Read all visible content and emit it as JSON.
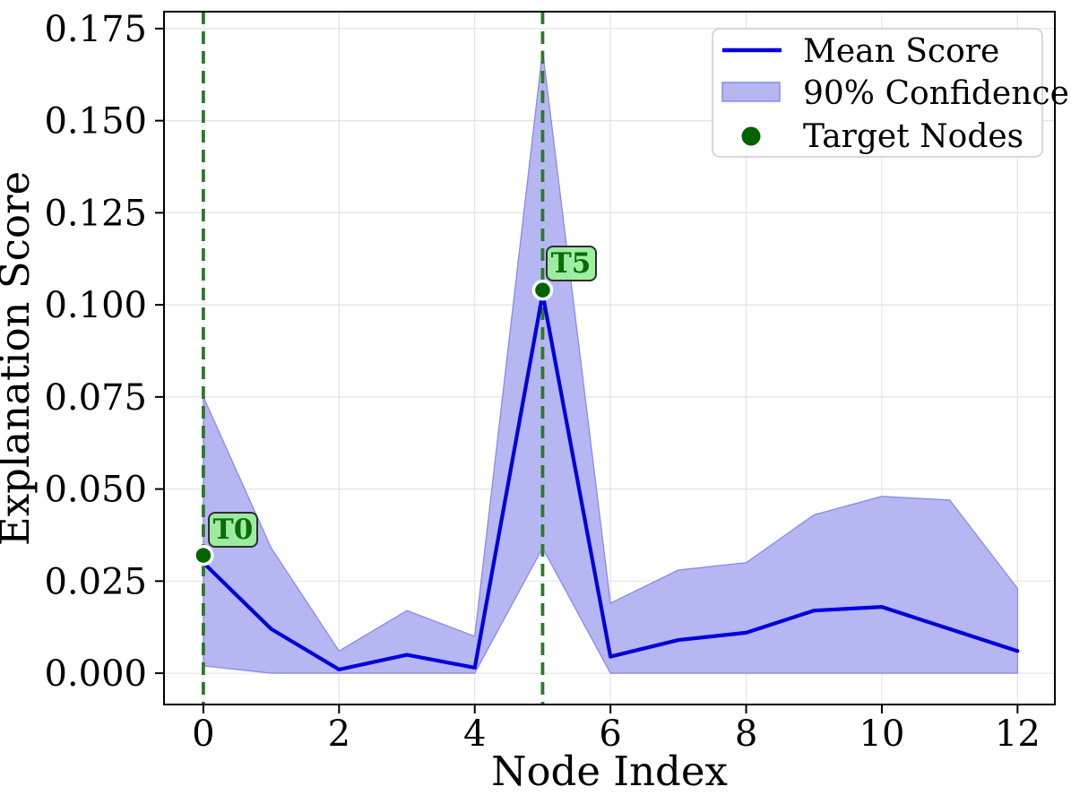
{
  "figure": {
    "background": "#ffffff",
    "grid_color": "#e4e4e4",
    "spine_color": "#000000"
  },
  "chart_data": {
    "type": "line",
    "title": "",
    "xlabel": "Node Index",
    "ylabel": "Explanation Score",
    "x": [
      0,
      1,
      2,
      3,
      4,
      5,
      6,
      7,
      8,
      9,
      10,
      11,
      12
    ],
    "series": [
      {
        "name": "Mean Score",
        "color": "#0000dd",
        "values": [
          0.03,
          0.012,
          0.001,
          0.005,
          0.0015,
          0.103,
          0.0045,
          0.009,
          0.011,
          0.017,
          0.018,
          0.012,
          0.006
        ]
      },
      {
        "name": "90% Confidence Upper",
        "color": "#b6b6f2",
        "values": [
          0.075,
          0.034,
          0.006,
          0.017,
          0.01,
          0.169,
          0.019,
          0.028,
          0.03,
          0.043,
          0.048,
          0.047,
          0.023
        ]
      },
      {
        "name": "90% Confidence Lower",
        "color": "#b6b6f2",
        "values": [
          0.002,
          0.0,
          0.0,
          0.0,
          0.0,
          0.034,
          0.0,
          0.0,
          0.0,
          0.0,
          0.0,
          0.0,
          0.0
        ]
      }
    ],
    "band": {
      "fill": "#b6b6f2",
      "edge": "#8a8aee"
    },
    "targets": [
      {
        "label": "T0",
        "x": 0,
        "y": 0.032
      },
      {
        "label": "T5",
        "x": 5,
        "y": 0.104
      }
    ],
    "target_marker_color": "#006400",
    "target_marker_edge": "#ffffff",
    "target_line_color": "#2b7a2b",
    "target_box_fill": "#9bee9b",
    "target_box_edge": "#2e2e2e",
    "target_text_color": "#0b6b0b",
    "xticks": {
      "values": [
        0,
        2,
        4,
        6,
        8,
        10,
        12
      ],
      "labels": [
        "0",
        "2",
        "4",
        "6",
        "8",
        "10",
        "12"
      ]
    },
    "yticks": {
      "values": [
        0.0,
        0.025,
        0.05,
        0.075,
        0.1,
        0.125,
        0.15,
        0.175
      ],
      "labels": [
        "0.000",
        "0.025",
        "0.050",
        "0.075",
        "0.100",
        "0.125",
        "0.150",
        "0.175"
      ]
    },
    "xlim": [
      -0.58,
      12.55
    ],
    "ylim": [
      -0.0085,
      0.1796
    ],
    "grid": true,
    "legend": {
      "position": "upper right",
      "entries": [
        {
          "label": "Mean Score",
          "glyph": "line",
          "color": "#0000dd"
        },
        {
          "label": "90% Confidence",
          "glyph": "patch",
          "color": "#b6b6f2",
          "edge": "#8a8aee"
        },
        {
          "label": "Target Nodes",
          "glyph": "dot",
          "color": "#006400"
        }
      ]
    }
  }
}
